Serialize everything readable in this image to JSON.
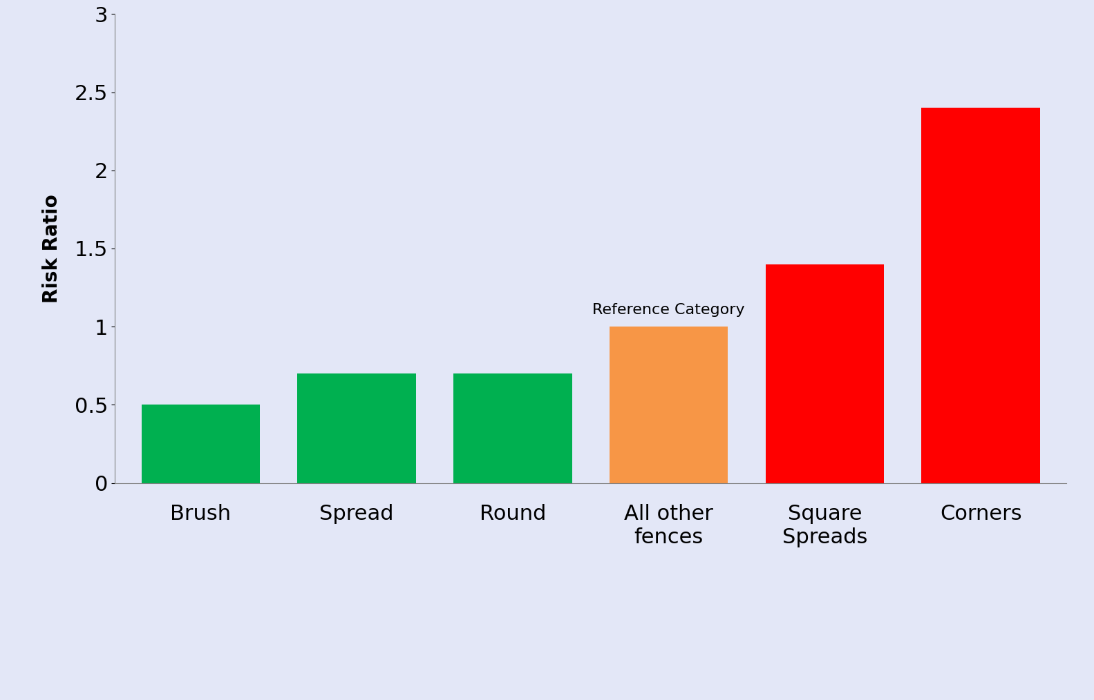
{
  "chart_data": {
    "type": "bar",
    "ylabel": "Risk Ratio",
    "categories": [
      "Brush",
      "Spread",
      "Round",
      "All other fences",
      "Square Spreads",
      "Corners"
    ],
    "values": [
      0.5,
      0.7,
      0.7,
      1,
      1.4,
      2.4
    ],
    "colors": [
      "#00b050",
      "#00b050",
      "#00b050",
      "#f79646",
      "#ff0000",
      "#ff0000"
    ],
    "ylim": [
      0,
      3
    ],
    "yticks": [
      0,
      0.5,
      1,
      1.5,
      2,
      2.5,
      3
    ],
    "grid": false,
    "annotations": [
      {
        "text": "Reference Category",
        "category": "All other fences"
      }
    ]
  }
}
